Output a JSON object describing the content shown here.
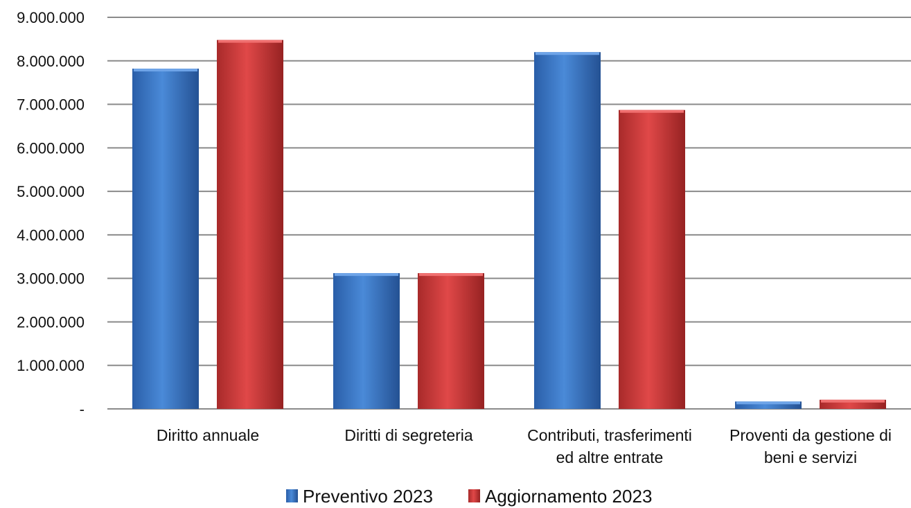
{
  "chart_data": {
    "type": "bar",
    "title": "",
    "xlabel": "",
    "ylabel": "",
    "categories": [
      [
        "Diritto annuale"
      ],
      [
        "Diritti di segreteria"
      ],
      [
        "Contributi, trasferimenti",
        "ed altre entrate"
      ],
      [
        "Proventi da gestione di",
        "beni e servizi"
      ]
    ],
    "series": [
      {
        "name": "Preventivo 2023",
        "color": "#3a76c4",
        "values": [
          7820000,
          3120000,
          8200000,
          170000
        ]
      },
      {
        "name": "Aggiornamento 2023",
        "color": "#c93a3a",
        "values": [
          8480000,
          3120000,
          6870000,
          210000
        ]
      }
    ],
    "ylim": [
      0,
      9000000
    ],
    "yticks": [
      0,
      1000000,
      2000000,
      3000000,
      4000000,
      5000000,
      6000000,
      7000000,
      8000000,
      9000000
    ],
    "ytick_labels": [
      "-",
      "1.000.000",
      "2.000.000",
      "3.000.000",
      "4.000.000",
      "5.000.000",
      "6.000.000",
      "7.000.000",
      "8.000.000",
      "9.000.000"
    ],
    "grid": true,
    "legend_position": "bottom"
  }
}
